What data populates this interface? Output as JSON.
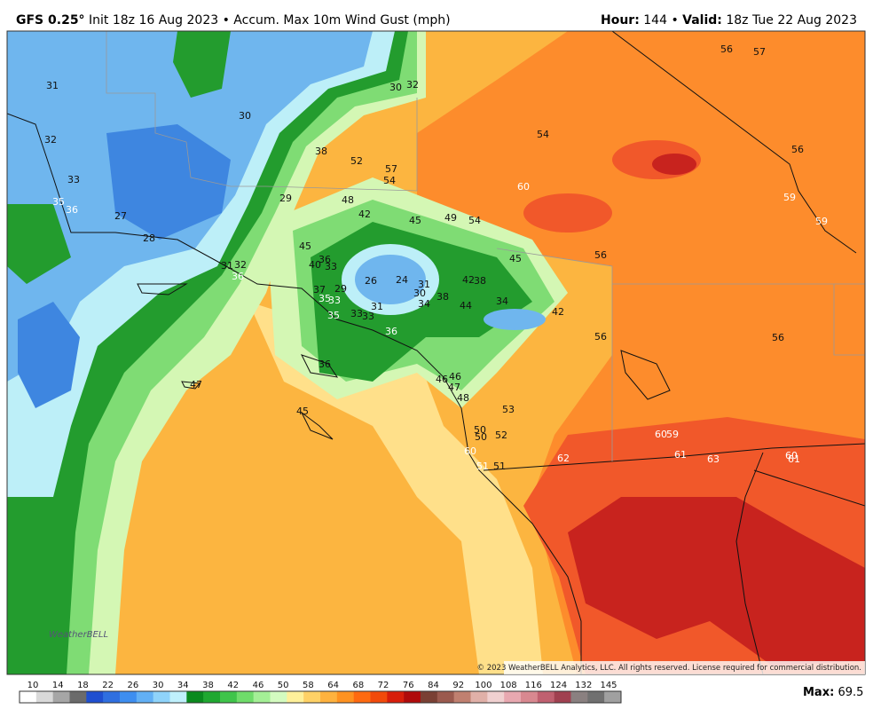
{
  "header": {
    "model": "GFS 0.25°",
    "desc": "Init 18z 16 Aug 2023 • Accum. Max 10m Wind Gust (mph)",
    "hour_label": "Hour:",
    "hour": "144 •",
    "valid_label": "Valid:",
    "valid": "18z Tue 22 Aug 2023"
  },
  "station_values": [
    "31",
    "30",
    "32",
    "30",
    "32",
    "33",
    "35",
    "36",
    "27",
    "28",
    "29",
    "38",
    "52",
    "57",
    "54",
    "48",
    "42",
    "45",
    "49",
    "54",
    "54",
    "60",
    "56",
    "57",
    "56",
    "59",
    "59",
    "56",
    "45",
    "45",
    "36",
    "40",
    "33",
    "31",
    "32",
    "36",
    "26",
    "24",
    "31",
    "30",
    "34",
    "38",
    "42",
    "38",
    "34",
    "44",
    "42",
    "37",
    "29",
    "35",
    "33",
    "35",
    "31",
    "33",
    "33",
    "36",
    "56",
    "56",
    "36",
    "47",
    "46",
    "46",
    "47",
    "48",
    "53",
    "45",
    "50",
    "50",
    "52",
    "60",
    "51",
    "51",
    "62",
    "60",
    "59",
    "61",
    "63",
    "60",
    "61"
  ],
  "colorbar": {
    "labels": [
      "10",
      "14",
      "18",
      "22",
      "26",
      "30",
      "34",
      "38",
      "42",
      "46",
      "50",
      "58",
      "64",
      "68",
      "72",
      "76",
      "84",
      "92",
      "100",
      "108",
      "116",
      "124",
      "132",
      "145"
    ],
    "colors": [
      "#ffffff",
      "#d9d9d9",
      "#a6a6a6",
      "#6b6b6b",
      "#1f4fd0",
      "#2f6fe0",
      "#3d8ef0",
      "#62b0f5",
      "#8fd3fa",
      "#bff0fc",
      "#0a8a1e",
      "#1fa830",
      "#3fc44a",
      "#6fdc6a",
      "#a4ef96",
      "#d4fbc0",
      "#fff09a",
      "#ffd166",
      "#ffb23e",
      "#ff9220",
      "#ff6a10",
      "#f24a0a",
      "#d81e0a",
      "#b00a0a",
      "#7a4034",
      "#9b5a4e",
      "#c08070",
      "#e0b0a8",
      "#f0d0d0",
      "#e8a8b0",
      "#d88890",
      "#c06070",
      "#a04050",
      "#8a8080",
      "#707070",
      "#a0a0a0"
    ]
  },
  "copyright": "© 2023 WeatherBELL Analytics, LLC. All rights reserved. License required for commercial distribution.",
  "logo": "WeatherBELL",
  "footer": {
    "max_label": "Max:",
    "max_value": "69.5"
  }
}
